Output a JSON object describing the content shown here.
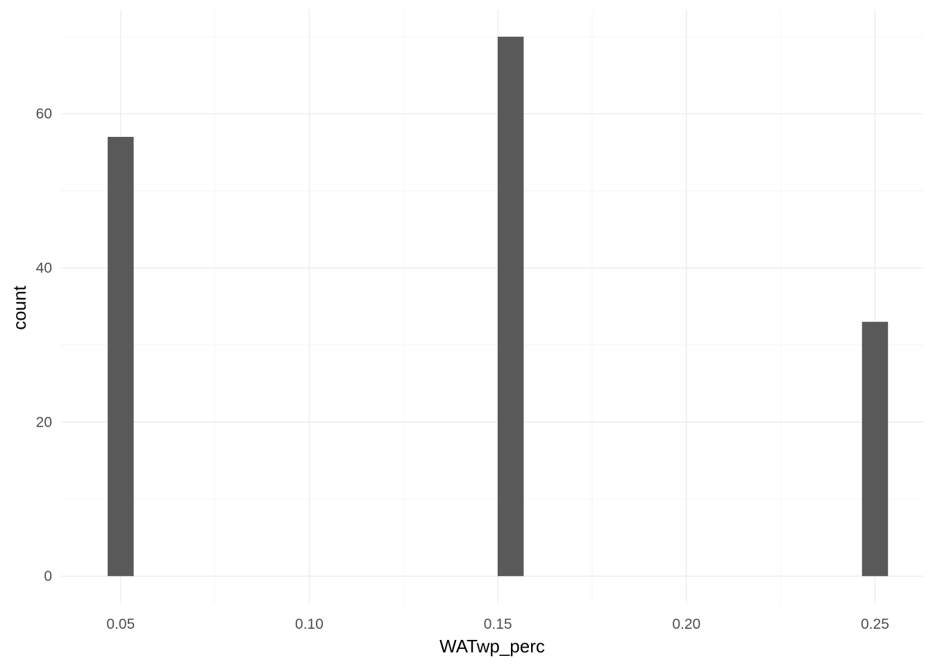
{
  "chart_data": {
    "type": "bar",
    "title": "",
    "xlabel": "WATwp_perc",
    "ylabel": "count",
    "x_ticks": [
      "0.05",
      "0.10",
      "0.15",
      "0.20",
      "0.25"
    ],
    "x_tick_values": [
      0.05,
      0.1,
      0.15,
      0.2,
      0.25
    ],
    "y_ticks": [
      "0",
      "20",
      "40",
      "60"
    ],
    "y_tick_values": [
      0,
      20,
      40,
      60
    ],
    "xlim": [
      0.0342,
      0.2628
    ],
    "ylim": [
      -3.5,
      73.5
    ],
    "bin_width": 0.0069,
    "bars": [
      {
        "x": 0.05,
        "count": 57
      },
      {
        "x": 0.1534,
        "count": 70
      },
      {
        "x": 0.25,
        "count": 33
      }
    ],
    "grid": true,
    "bar_color": "#595959",
    "grid_color": "#ebebeb",
    "legend": "none"
  }
}
